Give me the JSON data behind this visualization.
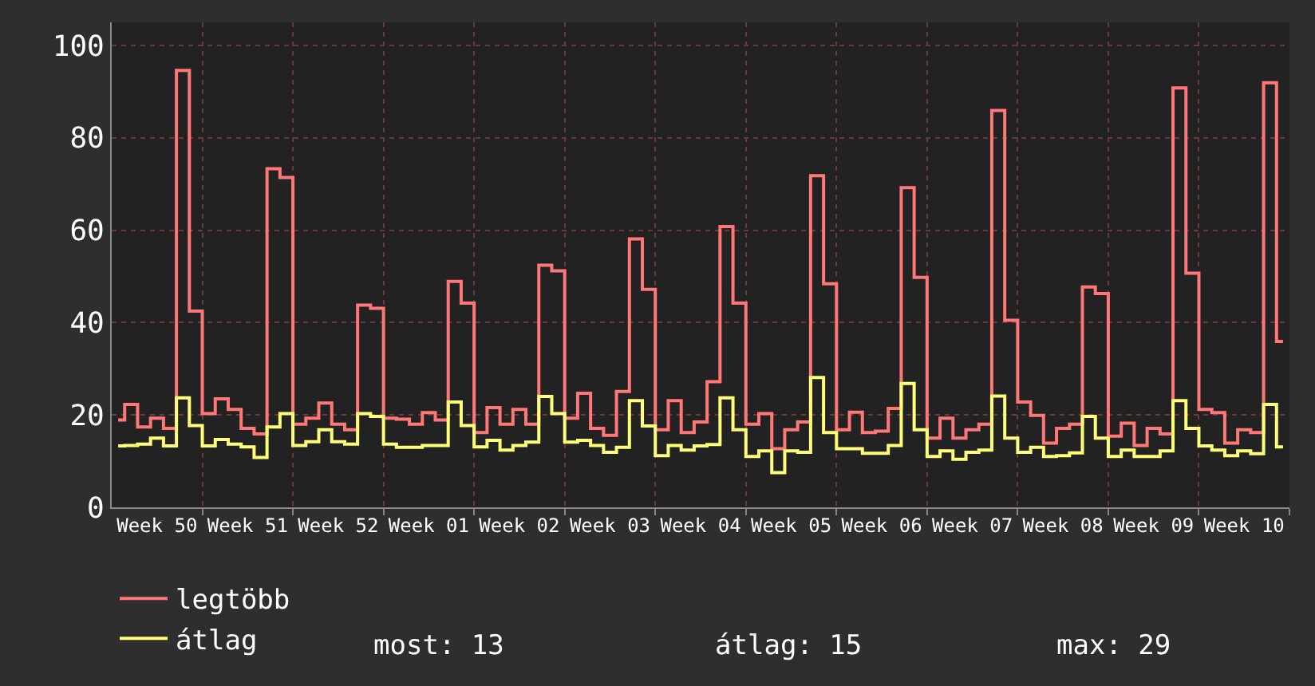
{
  "chart_data": {
    "type": "step",
    "categories": [
      null,
      null,
      null,
      "Week 50",
      null,
      null,
      null,
      null,
      null,
      null,
      "Week 51",
      null,
      null,
      null,
      null,
      null,
      null,
      "Week 52",
      null,
      null,
      null,
      null,
      null,
      null,
      "Week 01",
      null,
      null,
      null,
      null,
      null,
      null,
      "Week 02",
      null,
      null,
      null,
      null,
      null,
      null,
      "Week 03",
      null,
      null,
      null,
      null,
      null,
      null,
      "Week 04",
      null,
      null,
      null,
      null,
      null,
      null,
      "Week 05",
      null,
      null,
      null,
      null,
      null,
      null,
      "Week 06",
      null,
      null,
      null,
      null,
      null,
      null,
      "Week 07",
      null,
      null,
      null,
      null,
      null,
      null,
      "Week 08",
      null,
      null,
      null,
      null,
      null,
      null,
      "Week 09",
      null,
      null,
      null,
      null,
      null,
      null,
      "Week 10",
      null,
      null,
      null
    ],
    "series": [
      {
        "name": "legtöbb",
        "color": "#ff7777",
        "values": [
          18.9,
          22.3,
          17.4,
          19.3,
          17.1,
          94.6,
          42.5,
          20.3,
          23.5,
          21.2,
          17.1,
          15.9,
          73.3,
          71.4,
          18,
          19.3,
          22.6,
          18,
          16.8,
          43.8,
          43.1,
          19.3,
          19.1,
          18,
          20.5,
          18.9,
          48.9,
          44.2,
          16.2,
          21.6,
          18,
          21.2,
          18,
          52.4,
          51.2,
          19.3,
          24.7,
          17.1,
          15.6,
          25.1,
          58.1,
          47.2,
          16.8,
          23.1,
          16.2,
          18.5,
          27.2,
          60.8,
          44.2,
          18,
          20.3,
          12.7,
          16.8,
          18.5,
          71.8,
          48.4,
          16.8,
          20.6,
          16.2,
          16.5,
          21.4,
          69.2,
          49.8,
          15,
          19.3,
          15,
          16.8,
          18,
          85.9,
          40.5,
          22.8,
          19.9,
          13.9,
          17.1,
          18,
          47.7,
          46.3,
          15.4,
          18.2,
          13.4,
          17.1,
          15.9,
          90.8,
          50.7,
          21.2,
          20.5,
          13.9,
          16.8,
          16.2,
          91.9,
          35.9
        ]
      },
      {
        "name": "átlag",
        "color": "#ffff77",
        "values": [
          13.3,
          13.4,
          13.7,
          15,
          13.3,
          23.7,
          17.7,
          13.3,
          14.7,
          13.7,
          13.1,
          10.8,
          17.4,
          20.3,
          13.4,
          14.2,
          16.8,
          14.2,
          13.7,
          20.3,
          19.7,
          13.7,
          13,
          13,
          13.4,
          13.4,
          22.8,
          17.7,
          13.1,
          14.5,
          12.4,
          13.4,
          14.1,
          24,
          20.3,
          14.1,
          14.5,
          13.4,
          11.9,
          13,
          23.1,
          17.6,
          11.2,
          13.4,
          12.4,
          13.3,
          13.6,
          23.7,
          16.8,
          11,
          12.2,
          7.5,
          12.2,
          11.9,
          28.1,
          16.2,
          12.7,
          12.7,
          11.7,
          11.7,
          13.4,
          26.8,
          16.8,
          11,
          12.2,
          10.4,
          11.9,
          12.4,
          24.1,
          15,
          11.9,
          13,
          11,
          11.2,
          11.8,
          19.7,
          15,
          11,
          12.4,
          11,
          11,
          12.2,
          23.1,
          17.1,
          13.3,
          12.4,
          11.2,
          12.2,
          11.6,
          22.3,
          13.1
        ]
      }
    ],
    "ylim": [
      0,
      105
    ],
    "yticks": [
      0,
      20,
      40,
      60,
      80,
      100
    ],
    "grid": true,
    "legend": "bottom",
    "line_style": "solid",
    "marker": "none",
    "annotations": [
      "most: 13",
      "átlag: 15",
      "max: 29"
    ]
  }
}
